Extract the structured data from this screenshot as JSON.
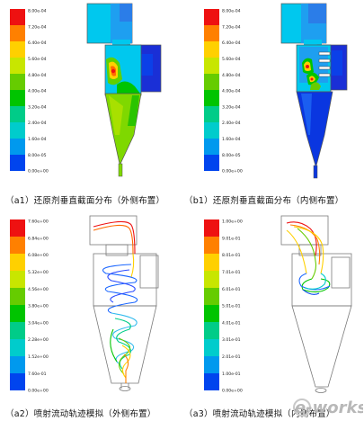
{
  "captions": {
    "a1": "（a1）还原剂垂直截面分布（外侧布置）",
    "b1": "（b1）还原剂垂直截面分布（内侧布置）",
    "a2": "（a2）喷射流动轨迹模拟（外侧布置）",
    "a3": "（a3）喷射流动轨迹模拟（内侧布置）"
  },
  "watermark": "e-works",
  "chart_data": [
    {
      "type": "heatmap",
      "panel": "a1",
      "legend_ticks": [
        "8.00e-04",
        "7.20e-04",
        "6.40e-04",
        "5.60e-04",
        "4.80e-04",
        "4.00e-04",
        "3.20e-04",
        "2.40e-04",
        "1.60e-04",
        "8.00e-05",
        "0.00e+00"
      ],
      "legend_range": [
        0,
        0.0008
      ],
      "colormap": "rainbow"
    },
    {
      "type": "heatmap",
      "panel": "b1",
      "legend_ticks": [
        "8.00e-04",
        "7.20e-04",
        "6.40e-04",
        "5.60e-04",
        "4.80e-04",
        "4.00e-04",
        "3.20e-04",
        "2.40e-04",
        "1.60e-04",
        "8.00e-05",
        "0.00e+00"
      ],
      "legend_range": [
        0,
        0.0008
      ],
      "colormap": "rainbow"
    },
    {
      "type": "line",
      "panel": "a2",
      "legend_ticks": [
        "7.60e+00",
        "6.84e+00",
        "6.08e+00",
        "5.32e+00",
        "4.56e+00",
        "3.80e+00",
        "3.04e+00",
        "2.28e+00",
        "1.52e+00",
        "7.60e-01",
        "0.00e+00"
      ],
      "legend_range": [
        0,
        7.6
      ],
      "colormap": "rainbow"
    },
    {
      "type": "line",
      "panel": "a3",
      "legend_ticks": [
        "1.00e+00",
        "9.01e-01",
        "8.01e-01",
        "7.01e-01",
        "6.01e-01",
        "5.01e-01",
        "4.01e-01",
        "3.01e-01",
        "2.01e-01",
        "1.00e-01",
        "0.00e+00"
      ],
      "legend_range": [
        0,
        1.0
      ],
      "colormap": "rainbow"
    }
  ]
}
